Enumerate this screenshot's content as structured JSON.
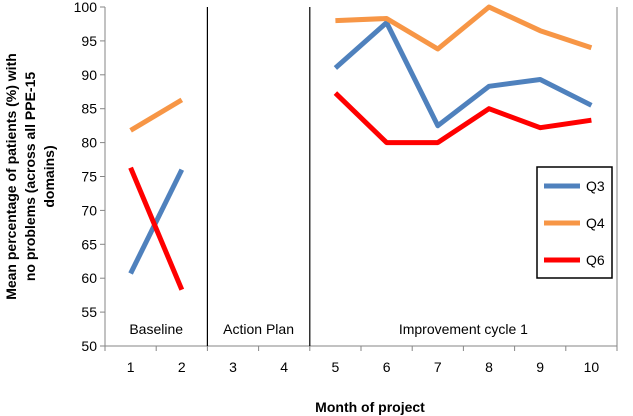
{
  "chart_data": {
    "type": "line",
    "title": "",
    "xlabel": "Month of project",
    "ylabel": "Mean percentage of patients (%) with no problems (across all PPE-15 domains)",
    "ylabel_lines": [
      "Mean percentage of patients (%) with",
      "no problems (across all PPE-15",
      "domains)"
    ],
    "x": [
      1,
      2,
      3,
      4,
      5,
      6,
      7,
      8,
      9,
      10
    ],
    "xlim": [
      0.5,
      10.5
    ],
    "ylim": [
      50,
      100
    ],
    "yticks": [
      50,
      55,
      60,
      65,
      70,
      75,
      80,
      85,
      90,
      95,
      100
    ],
    "xticks": [
      1,
      2,
      3,
      4,
      5,
      6,
      7,
      8,
      9,
      10
    ],
    "grid": "none",
    "legend_position": "right",
    "phases": [
      {
        "label": "Baseline",
        "start": 0.5,
        "end": 2.5
      },
      {
        "label": "Action Plan",
        "start": 2.5,
        "end": 4.5
      },
      {
        "label": "Improvement cycle 1",
        "start": 4.5,
        "end": 10.5
      }
    ],
    "series": [
      {
        "name": "Q3",
        "color": "#4f81bd",
        "segments": [
          {
            "x": [
              1,
              2
            ],
            "y": [
              60.7,
              76.0
            ]
          },
          {
            "x": [
              5,
              6,
              7,
              8,
              9,
              10
            ],
            "y": [
              91.0,
              97.7,
              82.5,
              88.3,
              89.3,
              85.5
            ]
          }
        ]
      },
      {
        "name": "Q4",
        "color": "#f79646",
        "segments": [
          {
            "x": [
              1,
              2
            ],
            "y": [
              81.8,
              86.3
            ]
          },
          {
            "x": [
              5,
              6,
              7,
              8,
              9,
              10
            ],
            "y": [
              98.0,
              98.3,
              93.8,
              100.0,
              96.5,
              94.0
            ]
          }
        ]
      },
      {
        "name": "Q6",
        "color": "#ff0000",
        "segments": [
          {
            "x": [
              1,
              2
            ],
            "y": [
              76.3,
              58.3
            ]
          },
          {
            "x": [
              5,
              6,
              7,
              8,
              9,
              10
            ],
            "y": [
              87.3,
              80.0,
              80.0,
              85.0,
              82.2,
              83.3
            ]
          }
        ]
      }
    ]
  }
}
